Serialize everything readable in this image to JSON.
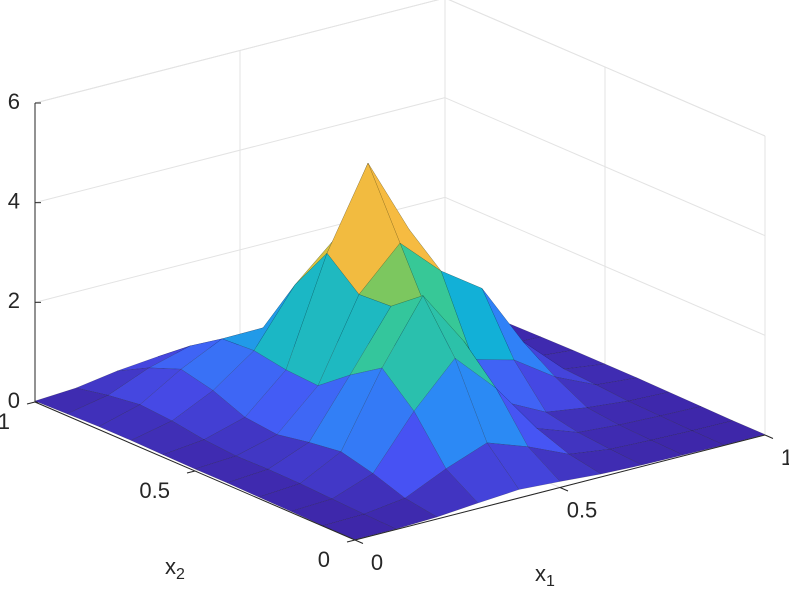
{
  "chart_data": {
    "type": "surface",
    "x": [
      0,
      0.1,
      0.2,
      0.3,
      0.4,
      0.5,
      0.6,
      0.7,
      0.8,
      0.9,
      1
    ],
    "y": [
      0,
      0.1,
      0.2,
      0.3,
      0.4,
      0.5,
      0.6,
      0.7,
      0.8,
      0.9,
      1
    ],
    "z": [
      [
        0.01,
        0.01,
        0.04,
        0.11,
        0.17,
        0.12,
        0.06,
        0.03,
        0.02,
        0.01,
        0.01
      ],
      [
        0.01,
        0.03,
        0.14,
        0.52,
        0.83,
        0.54,
        0.18,
        0.07,
        0.04,
        0.02,
        0.01
      ],
      [
        0.02,
        0.06,
        0.36,
        1.4,
        2.25,
        1.44,
        0.42,
        0.13,
        0.07,
        0.04,
        0.02
      ],
      [
        0.03,
        0.09,
        0.52,
        1.99,
        3.23,
        2.1,
        0.67,
        0.26,
        0.14,
        0.06,
        0.03
      ],
      [
        0.04,
        0.1,
        0.43,
        1.57,
        2.74,
        2.19,
        1.25,
        1.03,
        0.48,
        0.11,
        0.04
      ],
      [
        0.04,
        0.09,
        0.31,
        1.08,
        2.7,
        3.52,
        2.75,
        2.19,
        0.91,
        0.15,
        0.04
      ],
      [
        0.05,
        0.14,
        0.38,
        1.12,
        3.25,
        4.85,
        3.31,
        1.52,
        0.52,
        0.11,
        0.04
      ],
      [
        0.06,
        0.24,
        0.64,
        1.23,
        2.34,
        3.08,
        1.9,
        0.59,
        0.17,
        0.06,
        0.03
      ],
      [
        0.06,
        0.29,
        0.79,
        1.19,
        1.2,
        0.99,
        0.53,
        0.19,
        0.08,
        0.04,
        0.02
      ],
      [
        0.04,
        0.2,
        0.54,
        0.77,
        0.61,
        0.31,
        0.14,
        0.06,
        0.04,
        0.02,
        0.01
      ],
      [
        0.02,
        0.07,
        0.2,
        0.28,
        0.22,
        0.1,
        0.05,
        0.03,
        0.02,
        0.01,
        0.01
      ]
    ],
    "colormap": "parula",
    "xlim": [
      0,
      1
    ],
    "ylim": [
      0,
      1
    ],
    "zlim": [
      0,
      6
    ],
    "xticks": [
      0,
      0.5,
      1
    ],
    "yticks": [
      0,
      0.5,
      1
    ],
    "zticks": [
      0,
      2,
      4,
      6
    ],
    "xlabel": {
      "text": "x",
      "subscript": "1"
    },
    "ylabel": {
      "text": "x",
      "subscript": "2"
    },
    "grid": true
  }
}
